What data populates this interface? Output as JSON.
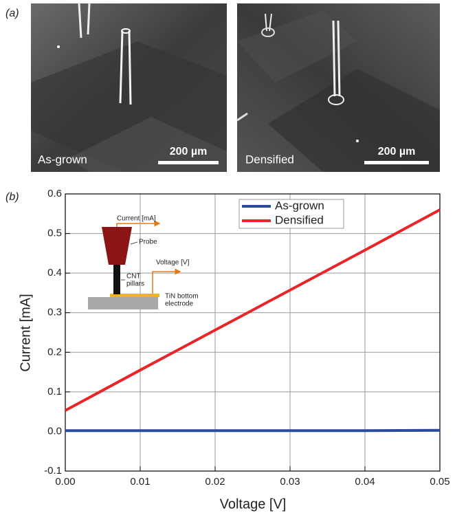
{
  "panel_a": {
    "label": "(a)",
    "images": [
      {
        "caption": "As-grown",
        "scale_bar": "200 µm"
      },
      {
        "caption": "Densified",
        "scale_bar": "200 µm"
      }
    ]
  },
  "chart_data": {
    "type": "line",
    "panel_label": "(b)",
    "x_label": "Voltage [V]",
    "y_label": "Current [mA]",
    "x": [
      0,
      0.01,
      0.02,
      0.03,
      0.04,
      0.05
    ],
    "series": [
      {
        "name": "As-grown",
        "color": "#2b4c9b",
        "values": [
          0.002,
          0.002,
          0.002,
          0.002,
          0.002,
          0.003
        ]
      },
      {
        "name": "Densified",
        "color": "#e8262a",
        "values": [
          0.053,
          0.155,
          0.256,
          0.357,
          0.458,
          0.56
        ]
      }
    ],
    "xlim": [
      0,
      0.05
    ],
    "ylim": [
      -0.1,
      0.6
    ],
    "xticks": [
      {
        "value": 0,
        "label": "0.00"
      },
      0.01,
      0.02,
      0.03,
      0.04,
      0.05
    ],
    "yticks": [
      -0.1,
      {
        "value": 0,
        "label": "0.0"
      },
      0.1,
      0.2,
      0.3,
      0.4,
      0.5,
      0.6
    ],
    "grid": true,
    "legend": "top",
    "inset": {
      "current": "Current [mA]",
      "probe": "Probe",
      "voltage": "Voltage [V]",
      "cnt": [
        "CNT",
        "pillars"
      ],
      "tin": [
        "TiN bottom",
        "electrode"
      ]
    }
  }
}
